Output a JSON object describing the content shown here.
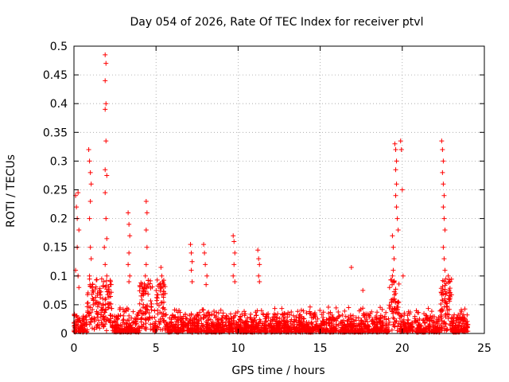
{
  "chart_data": {
    "type": "scatter",
    "title": "Day 054 of 2026, Rate Of TEC Index for receiver ptvl",
    "xlabel": "GPS time / hours",
    "ylabel": "ROTI / TECUs",
    "xlim": [
      0,
      25
    ],
    "ylim": [
      0,
      0.5
    ],
    "x_ticks": [
      0,
      5,
      10,
      15,
      20,
      25
    ],
    "x_tick_labels": [
      "0",
      "5",
      "10",
      "15",
      "20",
      "25"
    ],
    "y_ticks": [
      0,
      0.05,
      0.1,
      0.15,
      0.2,
      0.25,
      0.3,
      0.35,
      0.4,
      0.45,
      0.5
    ],
    "y_tick_labels": [
      "0",
      "0.05",
      "0.1",
      "0.15",
      "0.2",
      "0.25",
      "0.3",
      "0.35",
      "0.4",
      "0.45",
      "0.5"
    ],
    "grid": true,
    "marker": "plus",
    "series_color": "#ff0000",
    "series": [
      {
        "name": "ROTI",
        "points": [
          [
            0.1,
            0.24
          ],
          [
            0.15,
            0.22
          ],
          [
            0.2,
            0.2
          ],
          [
            0.25,
            0.245
          ],
          [
            0.3,
            0.18
          ],
          [
            0.2,
            0.15
          ],
          [
            0.25,
            0.1
          ],
          [
            0.3,
            0.08
          ],
          [
            0.1,
            0.11
          ],
          [
            0.9,
            0.32
          ],
          [
            0.95,
            0.3
          ],
          [
            1.0,
            0.28
          ],
          [
            1.05,
            0.26
          ],
          [
            1.0,
            0.23
          ],
          [
            0.95,
            0.2
          ],
          [
            1.0,
            0.15
          ],
          [
            1.05,
            0.13
          ],
          [
            0.95,
            0.1
          ],
          [
            1.1,
            0.08
          ],
          [
            1.9,
            0.485
          ],
          [
            1.95,
            0.47
          ],
          [
            1.9,
            0.44
          ],
          [
            1.95,
            0.4
          ],
          [
            1.9,
            0.39
          ],
          [
            1.95,
            0.335
          ],
          [
            1.9,
            0.285
          ],
          [
            2.0,
            0.275
          ],
          [
            1.9,
            0.245
          ],
          [
            1.95,
            0.2
          ],
          [
            2.0,
            0.165
          ],
          [
            1.85,
            0.15
          ],
          [
            1.9,
            0.12
          ],
          [
            2.0,
            0.1
          ],
          [
            1.8,
            0.09
          ],
          [
            3.3,
            0.21
          ],
          [
            3.35,
            0.19
          ],
          [
            3.4,
            0.17
          ],
          [
            3.35,
            0.14
          ],
          [
            3.3,
            0.12
          ],
          [
            3.4,
            0.1
          ],
          [
            3.35,
            0.09
          ],
          [
            4.4,
            0.23
          ],
          [
            4.45,
            0.21
          ],
          [
            4.4,
            0.18
          ],
          [
            4.45,
            0.15
          ],
          [
            4.4,
            0.12
          ],
          [
            4.35,
            0.1
          ],
          [
            4.45,
            0.08
          ],
          [
            5.3,
            0.115
          ],
          [
            5.35,
            0.1
          ],
          [
            5.4,
            0.09
          ],
          [
            5.3,
            0.08
          ],
          [
            7.1,
            0.155
          ],
          [
            7.15,
            0.14
          ],
          [
            7.2,
            0.125
          ],
          [
            7.15,
            0.11
          ],
          [
            7.2,
            0.09
          ],
          [
            7.9,
            0.155
          ],
          [
            7.95,
            0.14
          ],
          [
            8.0,
            0.12
          ],
          [
            8.1,
            0.1
          ],
          [
            8.05,
            0.085
          ],
          [
            9.7,
            0.17
          ],
          [
            9.75,
            0.16
          ],
          [
            9.8,
            0.14
          ],
          [
            9.75,
            0.12
          ],
          [
            9.7,
            0.1
          ],
          [
            9.8,
            0.09
          ],
          [
            11.2,
            0.145
          ],
          [
            11.25,
            0.13
          ],
          [
            11.3,
            0.12
          ],
          [
            11.25,
            0.1
          ],
          [
            11.3,
            0.09
          ],
          [
            16.9,
            0.115
          ],
          [
            17.6,
            0.075
          ],
          [
            19.4,
            0.17
          ],
          [
            19.45,
            0.15
          ],
          [
            19.5,
            0.13
          ],
          [
            19.45,
            0.11
          ],
          [
            19.4,
            0.1
          ],
          [
            19.5,
            0.09
          ],
          [
            19.55,
            0.33
          ],
          [
            19.6,
            0.32
          ],
          [
            19.65,
            0.3
          ],
          [
            19.6,
            0.285
          ],
          [
            19.65,
            0.26
          ],
          [
            19.6,
            0.24
          ],
          [
            19.65,
            0.22
          ],
          [
            19.7,
            0.2
          ],
          [
            19.75,
            0.18
          ],
          [
            19.9,
            0.335
          ],
          [
            19.95,
            0.32
          ],
          [
            20.0,
            0.25
          ],
          [
            20.05,
            0.1
          ],
          [
            22.4,
            0.335
          ],
          [
            22.45,
            0.32
          ],
          [
            22.5,
            0.3
          ],
          [
            22.45,
            0.28
          ],
          [
            22.5,
            0.26
          ],
          [
            22.55,
            0.24
          ],
          [
            22.5,
            0.22
          ],
          [
            22.55,
            0.2
          ],
          [
            22.6,
            0.18
          ],
          [
            22.5,
            0.15
          ],
          [
            22.55,
            0.13
          ],
          [
            22.6,
            0.11
          ],
          [
            22.8,
            0.1
          ],
          [
            22.9,
            0.09
          ]
        ]
      }
    ]
  }
}
